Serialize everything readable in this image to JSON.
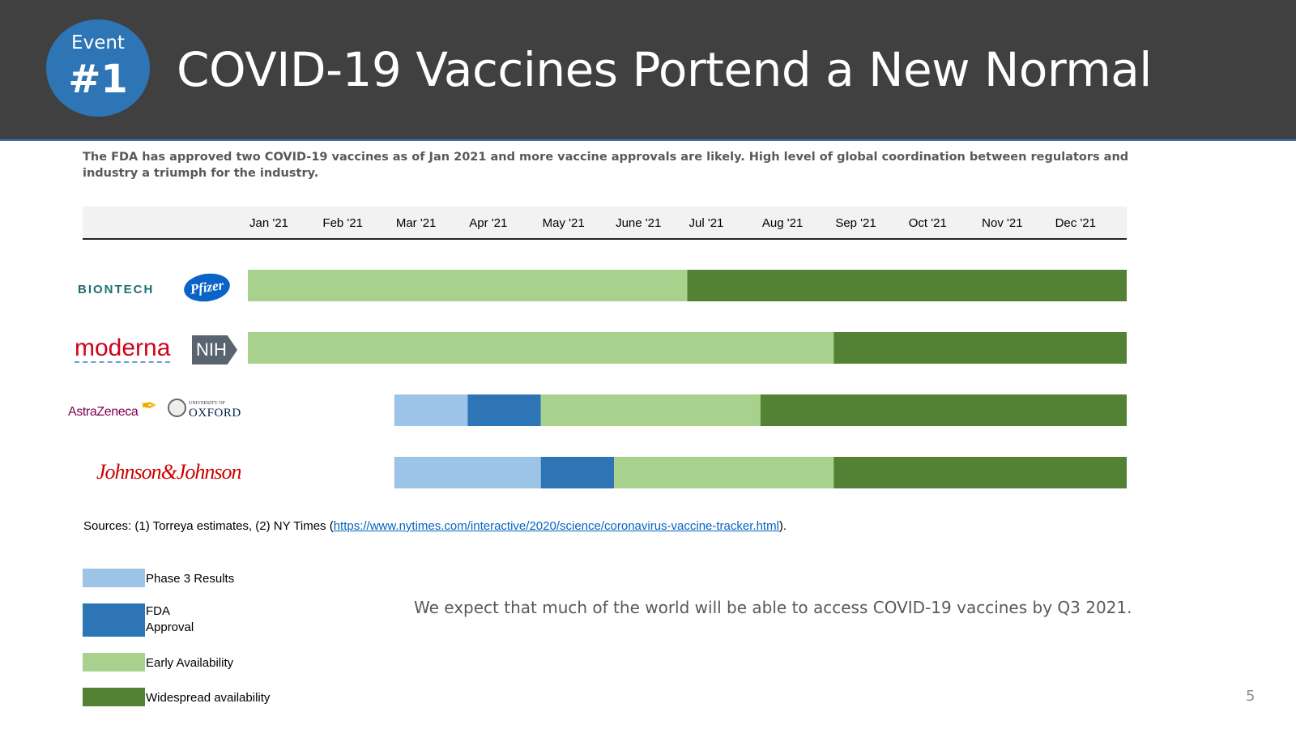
{
  "header": {
    "badge_top": "Event",
    "badge_number": "#1",
    "title": "COVID-19 Vaccines Portend a New Normal"
  },
  "subtitle": "The FDA has approved two COVID-19 vaccines as of Jan 2021 and more vaccine approvals are likely. High level of global coordination between regulators and industry a triumph for the industry.",
  "logos": {
    "biontech": "BIONTECH",
    "pfizer": "Pfizer",
    "moderna": "moderna",
    "nih": "NIH",
    "astrazeneca": "AstraZeneca",
    "oxford_small": "UNIVERSITY OF",
    "oxford": "OXFORD",
    "jnj": "Johnson&Johnson"
  },
  "chart_data": {
    "type": "bar",
    "orientation": "horizontal-stacked-timeline",
    "months": [
      "Jan '21",
      "Feb '21",
      "Mar '21",
      "Apr '21",
      "May '21",
      "June '21",
      "Jul '21",
      "Aug '21",
      "Sep '21",
      "Oct '21",
      "Nov '21",
      "Dec '21"
    ],
    "categories": [
      "BioNTech / Pfizer",
      "Moderna / NIH",
      "AstraZeneca / Oxford",
      "Johnson & Johnson"
    ],
    "phases": [
      {
        "key": "phase3",
        "name": "Phase 3 Results",
        "color": "#9dc3e6"
      },
      {
        "key": "fda",
        "name": "FDA\nApproval",
        "color": "#2e75b6"
      },
      {
        "key": "early",
        "name": "Early Availability",
        "color": "#a9d18e"
      },
      {
        "key": "widespread",
        "name": "Widespread availability",
        "color": "#548235"
      }
    ],
    "rows": [
      {
        "segments": [
          {
            "phase": "early",
            "start_month": 0,
            "end_month": 6
          },
          {
            "phase": "widespread",
            "start_month": 6,
            "end_month": 12
          }
        ]
      },
      {
        "segments": [
          {
            "phase": "early",
            "start_month": 0,
            "end_month": 8
          },
          {
            "phase": "widespread",
            "start_month": 8,
            "end_month": 12
          }
        ]
      },
      {
        "segments": [
          {
            "phase": "phase3",
            "start_month": 2,
            "end_month": 3
          },
          {
            "phase": "fda",
            "start_month": 3,
            "end_month": 4
          },
          {
            "phase": "early",
            "start_month": 4,
            "end_month": 7
          },
          {
            "phase": "widespread",
            "start_month": 7,
            "end_month": 12
          }
        ]
      },
      {
        "segments": [
          {
            "phase": "phase3",
            "start_month": 2,
            "end_month": 4
          },
          {
            "phase": "fda",
            "start_month": 4,
            "end_month": 5
          },
          {
            "phase": "early",
            "start_month": 5,
            "end_month": 8
          },
          {
            "phase": "widespread",
            "start_month": 8,
            "end_month": 12
          }
        ]
      }
    ],
    "grid": false,
    "legend_position": "bottom-left"
  },
  "sources": {
    "prefix": "Sources: (1) Torreya estimates, (2) NY Times (",
    "link": "https://www.nytimes.com/interactive/2020/science/coronavirus-vaccine-tracker.html",
    "suffix": ")."
  },
  "note": "We expect that much of the world will be able to access COVID-19 vaccines by Q3 2021.",
  "page_number": "5"
}
